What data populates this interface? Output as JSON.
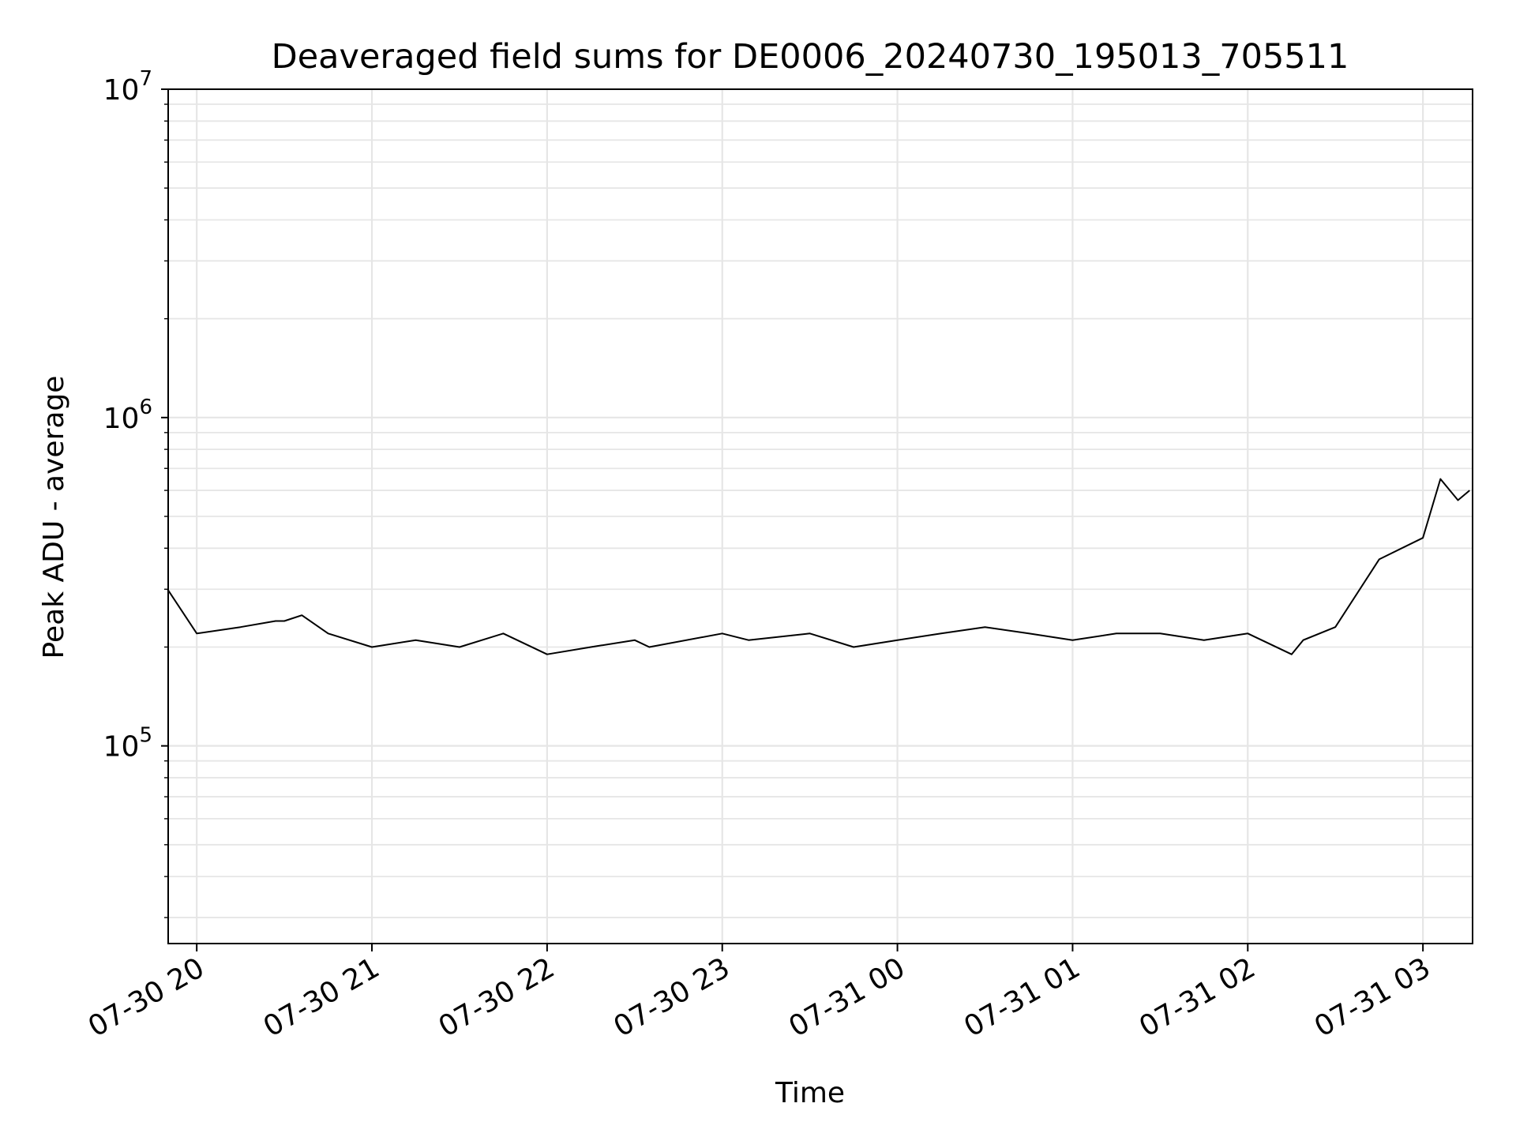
{
  "chart_data": {
    "type": "line",
    "title": "Deaveraged field sums for DE0006_20240730_195013_705511",
    "xlabel": "Time",
    "ylabel": "Peak ADU - average",
    "yscale": "log",
    "ylim": [
      25000,
      10000000
    ],
    "xlim": [
      "2024-07-30 19:50:13",
      "2024-07-31 03:17:00"
    ],
    "grid": true,
    "x_ticks": [
      "07-30 20",
      "07-30 21",
      "07-30 22",
      "07-30 23",
      "07-31 00",
      "07-31 01",
      "07-31 02",
      "07-31 03"
    ],
    "y_ticks": [
      {
        "base": "10",
        "exp": "5"
      },
      {
        "base": "10",
        "exp": "6"
      },
      {
        "base": "10",
        "exp": "7"
      }
    ],
    "series": [
      {
        "color": "#000000",
        "x": [
          "2024-07-30 19:50",
          "2024-07-30 20:00",
          "2024-07-30 20:15",
          "2024-07-30 20:27",
          "2024-07-30 20:30",
          "2024-07-30 20:36",
          "2024-07-30 20:45",
          "2024-07-30 21:00",
          "2024-07-30 21:15",
          "2024-07-30 21:30",
          "2024-07-30 21:45",
          "2024-07-30 22:00",
          "2024-07-30 22:15",
          "2024-07-30 22:30",
          "2024-07-30 22:35",
          "2024-07-30 23:00",
          "2024-07-30 23:09",
          "2024-07-30 23:30",
          "2024-07-30 23:45",
          "2024-07-31 00:00",
          "2024-07-31 00:15",
          "2024-07-31 00:30",
          "2024-07-31 00:45",
          "2024-07-31 01:00",
          "2024-07-31 01:15",
          "2024-07-31 01:30",
          "2024-07-31 01:45",
          "2024-07-31 02:00",
          "2024-07-31 02:15",
          "2024-07-31 02:19",
          "2024-07-31 02:30",
          "2024-07-31 02:45",
          "2024-07-31 03:00",
          "2024-07-31 03:06",
          "2024-07-31 03:12",
          "2024-07-31 03:16"
        ],
        "y": [
          300000,
          220000,
          230000,
          240000,
          240000,
          250000,
          220000,
          200000,
          210000,
          200000,
          220000,
          190000,
          200000,
          210000,
          200000,
          220000,
          210000,
          220000,
          200000,
          210000,
          220000,
          230000,
          220000,
          210000,
          220000,
          220000,
          210000,
          220000,
          190000,
          210000,
          230000,
          370000,
          430000,
          650000,
          560000,
          600000
        ]
      }
    ]
  }
}
